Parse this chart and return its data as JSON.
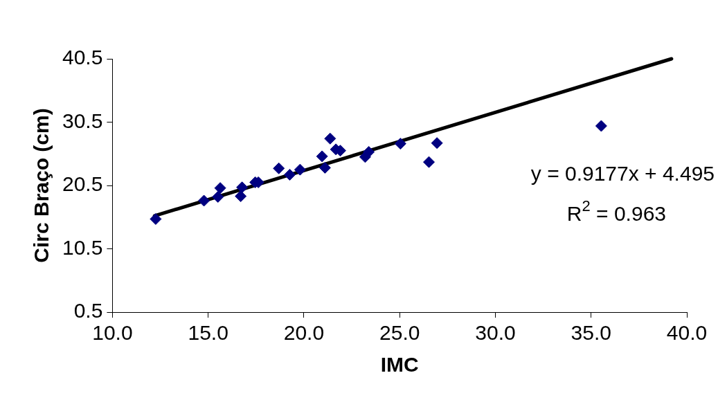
{
  "chart_data": {
    "type": "scatter",
    "xlabel": "IMC",
    "ylabel": "Circ Braço (cm)",
    "x": [
      12.26,
      14.78,
      15.51,
      15.63,
      16.7,
      16.77,
      17.46,
      17.62,
      18.69,
      19.26,
      19.8,
      20.95,
      21.1,
      21.37,
      21.67,
      21.9,
      23.2,
      23.39,
      25.04,
      26.53,
      26.95,
      35.53
    ],
    "series": [
      {
        "color": "#000080",
        "values": [
          15.2,
          18.1,
          18.7,
          20.1,
          18.8,
          20.2,
          21.0,
          21.0,
          23.2,
          22.2,
          23.0,
          25.1,
          23.3,
          27.9,
          26.2,
          26.0,
          25.0,
          25.8,
          27.1,
          24.2,
          27.2,
          29.9
        ]
      },
      {
        "type": "line",
        "color": "#000000",
        "marker": "none",
        "x": [
          12.2,
          39.2
        ],
        "values": [
          15.7,
          40.5
        ]
      }
    ],
    "marker": "diamond",
    "grid": false,
    "legend": false,
    "xlim": [
      10,
      40
    ],
    "xticks": [
      {
        "value": 10,
        "label": "10.0"
      },
      {
        "value": 15,
        "label": "15.0"
      },
      {
        "value": 20,
        "label": "20.0"
      },
      {
        "value": 25,
        "label": "25.0"
      },
      {
        "value": 30,
        "label": "30.0"
      },
      {
        "value": 35,
        "label": "35.0"
      },
      {
        "value": 40,
        "label": "40.0"
      }
    ],
    "ylim": [
      0.5,
      40.5
    ],
    "yticks": [
      0.5,
      10.5,
      20.5,
      30.5,
      40.5
    ],
    "annotations": [
      "y = 0.9177x + 4.495",
      "R$^{2}$ = 0.963"
    ]
  }
}
